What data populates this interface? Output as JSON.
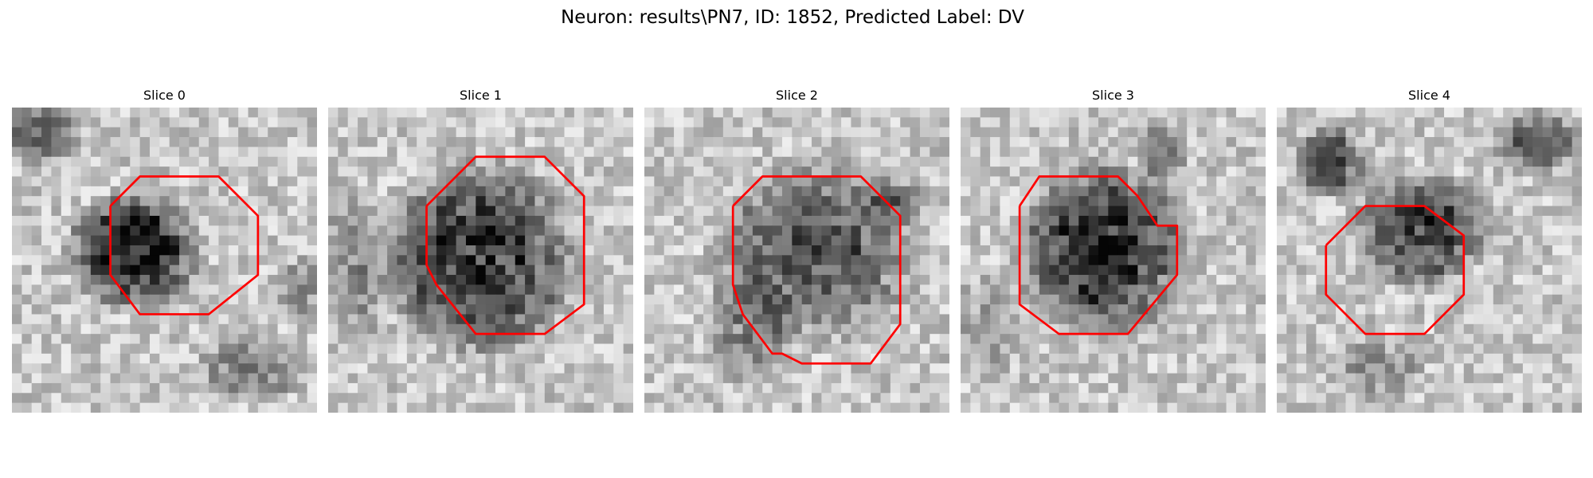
{
  "figure": {
    "title": "Neuron: results\\PN7, ID: 1852, Predicted Label: DV"
  },
  "colors": {
    "contour": "#ff0000",
    "grid_light": "#f2f2f2",
    "grid_dark": "#0a0a0a"
  },
  "slices": [
    {
      "title": "Slice 0"
    },
    {
      "title": "Slice 1"
    },
    {
      "title": "Slice 2"
    },
    {
      "title": "Slice 3"
    },
    {
      "title": "Slice 4"
    }
  ]
}
